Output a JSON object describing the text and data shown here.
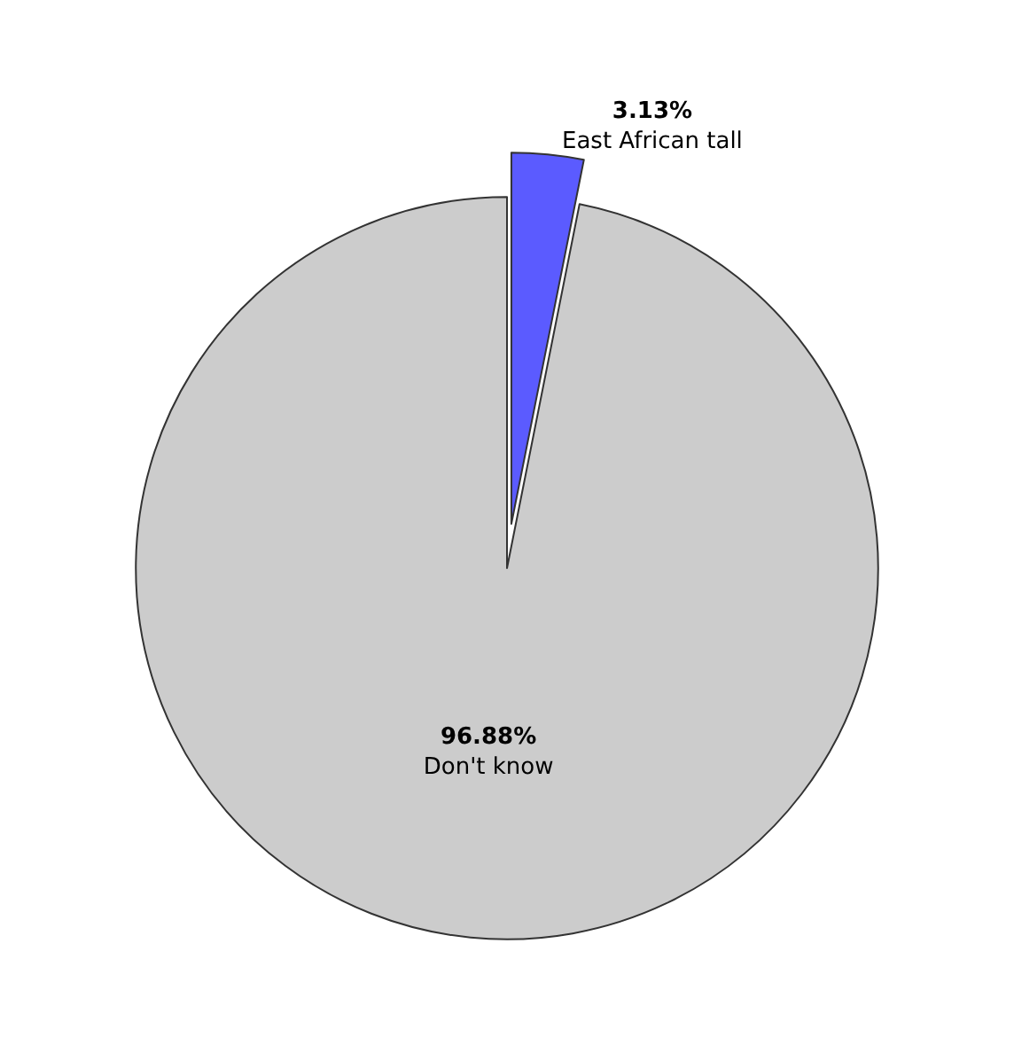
{
  "chart_data": {
    "type": "pie",
    "categories": [
      "East African tall",
      "Don't know"
    ],
    "values": [
      3.13,
      96.88
    ],
    "value_labels": [
      "3.13%",
      "96.88%"
    ],
    "colors": [
      "#5b5bff",
      "#cccccc"
    ],
    "legend": false
  }
}
